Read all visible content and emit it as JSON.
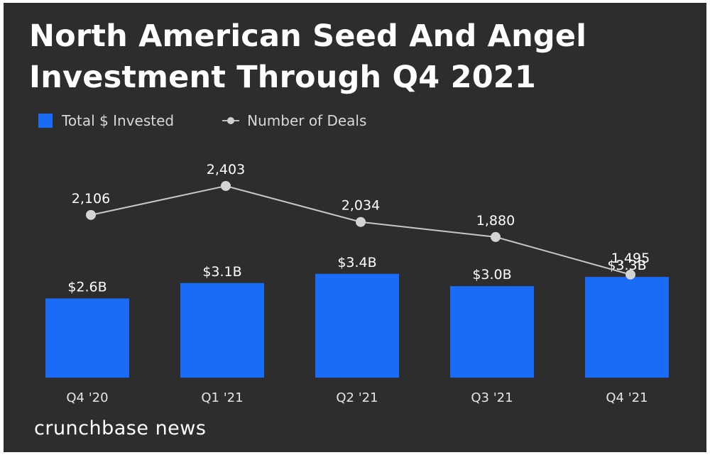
{
  "title": "North American Seed And Angel Investment Through Q4 2021",
  "legend": {
    "bars_label": "Total $ Invested",
    "line_label": "Number of Deals"
  },
  "footer": {
    "brand": "crunchbase news"
  },
  "colors": {
    "bar": "#1a6cf7",
    "line": "#c8c8c8",
    "background": "#2d2d2d",
    "text": "#ffffff"
  },
  "chart_data": {
    "type": "bar",
    "title": "North American Seed And Angel Investment Through Q4 2021",
    "xlabel": "",
    "ylabel": "",
    "categories": [
      "Q4 '20",
      "Q1 '21",
      "Q2 '21",
      "Q3 '21",
      "Q4 '21"
    ],
    "series": [
      {
        "name": "Total $ Invested",
        "type": "bar",
        "unit": "$B",
        "values": [
          2.6,
          3.1,
          3.4,
          3.0,
          3.3
        ],
        "labels": [
          "$2.6B",
          "$3.1B",
          "$3.4B",
          "$3.0B",
          "$3.3B"
        ]
      },
      {
        "name": "Number of Deals",
        "type": "line",
        "values": [
          2106,
          2403,
          2034,
          1880,
          1495
        ],
        "labels": [
          "2,106",
          "2,403",
          "2,034",
          "1,880",
          "1,495"
        ]
      }
    ],
    "legend_position": "top-left",
    "grid": false
  }
}
